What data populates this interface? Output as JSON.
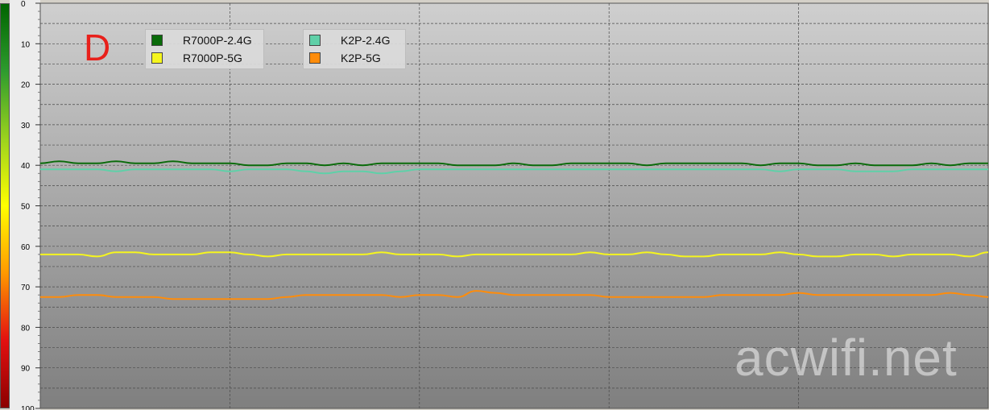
{
  "panel_letter": "D",
  "watermark": "acwifi.net",
  "legend": [
    {
      "label": "R7000P-2.4G",
      "color": "#0a6b0a"
    },
    {
      "label": "R7000P-5G",
      "color": "#f5f51e"
    },
    {
      "label": "K2P-2.4G",
      "color": "#5fd0a8"
    },
    {
      "label": "K2P-5G",
      "color": "#ff8c0a"
    }
  ],
  "chart_data": {
    "type": "line",
    "ylim": [
      0,
      100
    ],
    "y_inverted": true,
    "y_ticks": [
      "0",
      "10",
      "20",
      "30",
      "40",
      "50",
      "60",
      "70",
      "80",
      "90",
      "100"
    ],
    "grid": true,
    "legend_position": "top-left",
    "colorbar": [
      "#006400",
      "#2e9b2e",
      "#9bd21e",
      "#ffff00",
      "#ff9900",
      "#e31010",
      "#8b0000"
    ],
    "x": [
      0,
      1,
      2,
      3,
      4,
      5,
      6,
      7,
      8,
      9,
      10,
      11,
      12,
      13,
      14,
      15,
      16,
      17,
      18,
      19,
      20,
      21,
      22,
      23,
      24,
      25,
      26,
      27,
      28,
      29,
      30,
      31,
      32,
      33,
      34,
      35,
      36,
      37,
      38,
      39,
      40,
      41,
      42,
      43,
      44,
      45,
      46,
      47,
      48,
      49,
      50
    ],
    "series": [
      {
        "name": "R7000P-2.4G",
        "color": "#0a6b0a",
        "values": [
          39.5,
          39,
          39.5,
          39.5,
          39,
          39.5,
          39.5,
          39,
          39.5,
          39.5,
          39.5,
          40,
          40,
          39.5,
          39.5,
          40,
          39.5,
          40,
          39.5,
          39.5,
          39.5,
          39.5,
          40,
          40,
          40,
          39.5,
          40,
          40,
          39.5,
          39.5,
          39.5,
          39.5,
          40,
          39.5,
          39.5,
          39.5,
          39.5,
          39.5,
          40,
          39.5,
          39.5,
          40,
          40,
          39.5,
          40,
          40,
          40,
          39.5,
          40,
          39.5,
          39.5
        ]
      },
      {
        "name": "R7000P-5G",
        "color": "#f5f51e",
        "values": [
          62,
          62,
          62,
          62.5,
          61.5,
          61.5,
          62,
          62,
          62,
          61.5,
          61.5,
          62,
          62.5,
          62,
          62,
          62,
          62,
          62,
          61.5,
          62,
          62,
          62,
          62.5,
          62,
          62,
          62,
          62,
          62,
          62,
          61.5,
          62,
          62,
          61.5,
          62,
          62.5,
          62.5,
          62,
          62,
          62,
          61.5,
          62,
          62.5,
          62.5,
          62,
          62,
          62.5,
          62,
          62,
          62,
          62.5,
          61.5
        ]
      },
      {
        "name": "K2P-2.4G",
        "color": "#5fd0a8",
        "values": [
          41,
          41,
          41,
          41,
          41.5,
          41,
          41,
          41,
          41,
          41,
          41.5,
          41,
          41,
          41,
          41.5,
          42,
          41.5,
          41.5,
          42,
          41.5,
          41,
          41,
          41,
          41,
          41,
          41,
          41,
          41,
          41,
          41,
          41,
          41,
          41,
          41,
          41,
          41,
          41,
          41,
          41,
          41.5,
          41,
          41,
          41,
          41.5,
          41.5,
          41.5,
          41,
          41,
          41,
          41,
          41
        ]
      },
      {
        "name": "K2P-5G",
        "color": "#ff8c0a",
        "values": [
          72.5,
          72.5,
          72,
          72,
          72.5,
          72.5,
          72.5,
          73,
          73,
          73,
          73,
          73,
          73,
          72.5,
          72,
          72,
          72,
          72,
          72,
          72.5,
          72,
          72,
          72.5,
          71,
          71.5,
          72,
          72,
          72,
          72,
          72,
          72.5,
          72.5,
          72.5,
          72.5,
          72.5,
          72.5,
          72,
          72,
          72,
          72,
          71.5,
          72,
          72,
          72,
          72,
          72,
          72,
          72,
          71.5,
          72,
          72.5
        ]
      }
    ]
  }
}
